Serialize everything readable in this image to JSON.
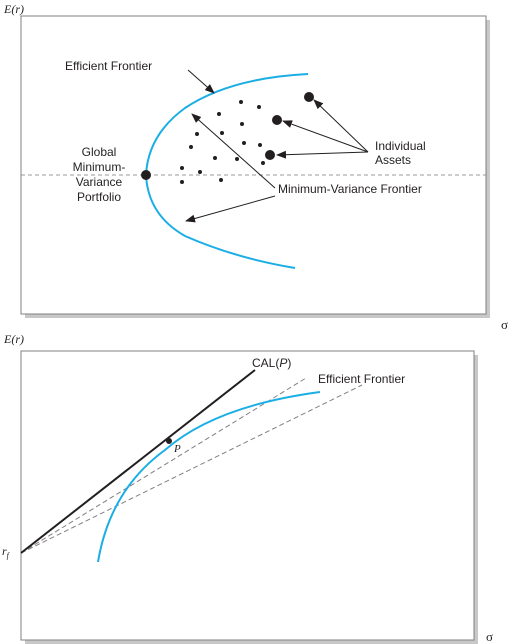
{
  "top_panel": {
    "y_axis_label": "E(r)",
    "x_axis_label": "σ",
    "labels": {
      "efficient_frontier": "Efficient Frontier",
      "individual_assets": [
        "Individual",
        "Assets"
      ],
      "global_mvp": [
        "Global",
        "Minimum-",
        "Variance",
        "Portfolio"
      ],
      "minimum_variance_frontier": "Minimum-Variance Frontier"
    },
    "colors": {
      "frontier": "#1aaee5",
      "ink": "#231f20",
      "frame": "#808080",
      "dashed": "#999999"
    }
  },
  "bottom_panel": {
    "y_axis_label": "E(r)",
    "x_axis_label": "σ",
    "rf_label": "r",
    "rf_subscript": "f",
    "cal_label": "CAL(",
    "cal_label_italic": "P",
    "cal_label_end": ")",
    "point_label": "P",
    "efficient_frontier_label": "Efficient Frontier",
    "colors": {
      "frontier": "#1aaee5",
      "cal": "#231f20",
      "dashed": "#808080"
    }
  }
}
